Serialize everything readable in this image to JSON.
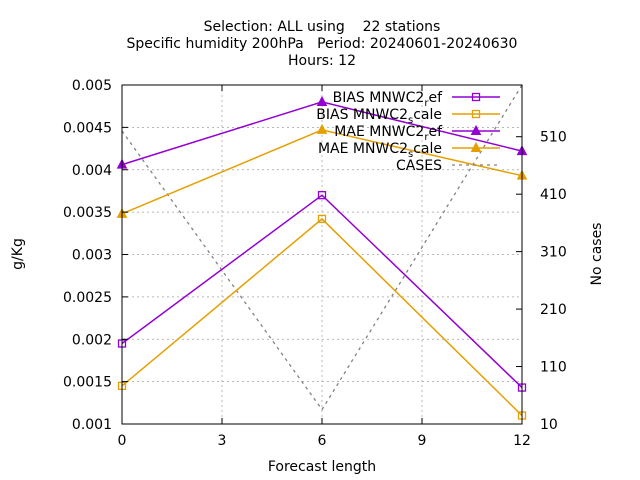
{
  "chart_data": {
    "type": "line",
    "title_lines": [
      "Selection: ALL using    22 stations",
      "Specific humidity 200hPa   Period: 20240601-20240630",
      "Hours: 12"
    ],
    "xlabel": "Forecast length",
    "ylabel": "g/Kg",
    "y2label": "No cases",
    "x": [
      0,
      6,
      12
    ],
    "xticks": [
      0,
      3,
      6,
      9,
      12
    ],
    "xlim": [
      0,
      12
    ],
    "ylim": [
      0.001,
      0.005
    ],
    "yticks": [
      "0.001",
      "0.0015",
      "0.002",
      "0.0025",
      "0.003",
      "0.0035",
      "0.004",
      "0.0045",
      "0.005"
    ],
    "y2lim": [
      10,
      600
    ],
    "y2ticks": [
      10,
      110,
      210,
      310,
      410,
      510
    ],
    "grid": true,
    "legend_position": "top-right",
    "series": [
      {
        "name": "BIAS MNWC2_ref",
        "legend_main": "BIAS MNWC2",
        "legend_sub": "r",
        "legend_tail": "ef",
        "color": "#9400d3",
        "marker": "square",
        "axis": "y1",
        "values": [
          0.00195,
          0.0037,
          0.00143
        ]
      },
      {
        "name": "BIAS MNWC2_scale",
        "legend_main": "BIAS MNWC2",
        "legend_sub": "s",
        "legend_tail": "cale",
        "color": "#e69f00",
        "marker": "square",
        "axis": "y1",
        "values": [
          0.00145,
          0.00342,
          0.0011
        ]
      },
      {
        "name": "MAE MNWC2_ref",
        "legend_main": "MAE MNWC2",
        "legend_sub": "r",
        "legend_tail": "ef",
        "color": "#9400d3",
        "marker": "triangle",
        "axis": "y1",
        "values": [
          0.00406,
          0.0048,
          0.00422
        ]
      },
      {
        "name": "MAE MNWC2_scale",
        "legend_main": "MAE MNWC2",
        "legend_sub": "s",
        "legend_tail": "cale",
        "color": "#e69f00",
        "marker": "triangle",
        "axis": "y1",
        "values": [
          0.00348,
          0.00447,
          0.00393
        ]
      },
      {
        "name": "CASES",
        "legend_main": "CASES",
        "legend_sub": "",
        "legend_tail": "",
        "color": "#808080",
        "marker": "none",
        "dashed": true,
        "axis": "y2",
        "values": [
          520,
          35,
          600
        ]
      }
    ]
  }
}
